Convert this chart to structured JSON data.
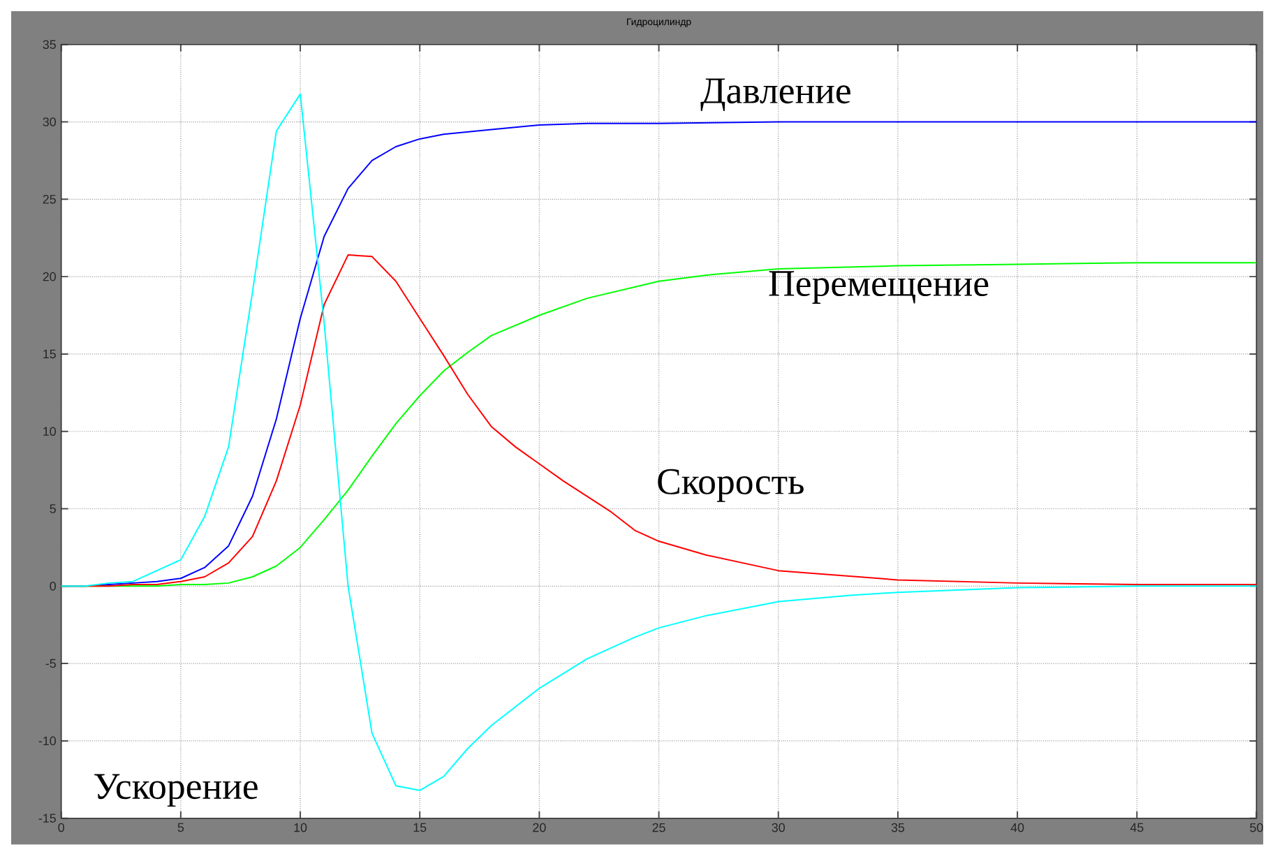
{
  "chart_data": {
    "type": "line",
    "title": "Гидроцилиндр",
    "xlim": [
      0,
      50
    ],
    "ylim": [
      -15,
      35
    ],
    "xticks": [
      0,
      5,
      10,
      15,
      20,
      25,
      30,
      35,
      40,
      45,
      50
    ],
    "yticks": [
      -15,
      -10,
      -5,
      0,
      5,
      10,
      15,
      20,
      25,
      30,
      35
    ],
    "grid": true,
    "series": [
      {
        "color": "#0000ff",
        "x": [
          0,
          1,
          2,
          3,
          4,
          5,
          6,
          7,
          8,
          9,
          10,
          11,
          12,
          13,
          14,
          15,
          16,
          18,
          20,
          22,
          25,
          30,
          35,
          40,
          45,
          50
        ],
        "values": [
          0,
          0,
          0.1,
          0.2,
          0.3,
          0.5,
          1.2,
          2.6,
          5.8,
          10.8,
          17.3,
          22.6,
          25.7,
          27.5,
          28.4,
          28.9,
          29.2,
          29.5,
          29.8,
          29.9,
          29.9,
          30,
          30,
          30,
          30,
          30
        ]
      },
      {
        "color": "#00ff00",
        "x": [
          0,
          4,
          5,
          6,
          7,
          8,
          9,
          10,
          11,
          12,
          13,
          14,
          15,
          16,
          17,
          18,
          20,
          22,
          25,
          27,
          30,
          35,
          40,
          45,
          50
        ],
        "values": [
          0,
          0,
          0.1,
          0.1,
          0.2,
          0.6,
          1.3,
          2.5,
          4.3,
          6.2,
          8.4,
          10.5,
          12.3,
          13.9,
          15.1,
          16.2,
          17.5,
          18.6,
          19.7,
          20.1,
          20.5,
          20.7,
          20.8,
          20.9,
          20.9
        ]
      },
      {
        "color": "#ff0000",
        "x": [
          0,
          2,
          3,
          4,
          5,
          6,
          7,
          8,
          9,
          10,
          11,
          12,
          13,
          14,
          15,
          16,
          17,
          18,
          19,
          20,
          21,
          22,
          23,
          24,
          25,
          27,
          30,
          35,
          40,
          45,
          50
        ],
        "values": [
          0,
          0,
          0.1,
          0.1,
          0.3,
          0.6,
          1.5,
          3.2,
          6.8,
          11.7,
          18.2,
          21.4,
          21.3,
          19.7,
          17.3,
          14.9,
          12.4,
          10.3,
          9.0,
          7.9,
          6.8,
          5.8,
          4.8,
          3.6,
          2.9,
          2.0,
          1.0,
          0.4,
          0.2,
          0.1,
          0.1
        ]
      },
      {
        "color": "#00ffff",
        "x": [
          0,
          1,
          2,
          3,
          4,
          5,
          6,
          7,
          8,
          9,
          10,
          11,
          12,
          13,
          14,
          15,
          16,
          17,
          18,
          20,
          22,
          24,
          25,
          27,
          30,
          33,
          35,
          40,
          45,
          50
        ],
        "values": [
          0,
          0,
          0.2,
          0.3,
          1.0,
          1.7,
          4.5,
          9,
          19,
          29.4,
          31.8,
          17,
          0,
          -9.5,
          -12.9,
          -13.2,
          -12.3,
          -10.5,
          -9.0,
          -6.6,
          -4.7,
          -3.3,
          -2.7,
          -1.9,
          -1.0,
          -0.6,
          -0.4,
          -0.1,
          0,
          0
        ]
      }
    ],
    "annotations": [
      "Давление",
      "Перемещение",
      "Скорость",
      "Ускорение"
    ]
  }
}
